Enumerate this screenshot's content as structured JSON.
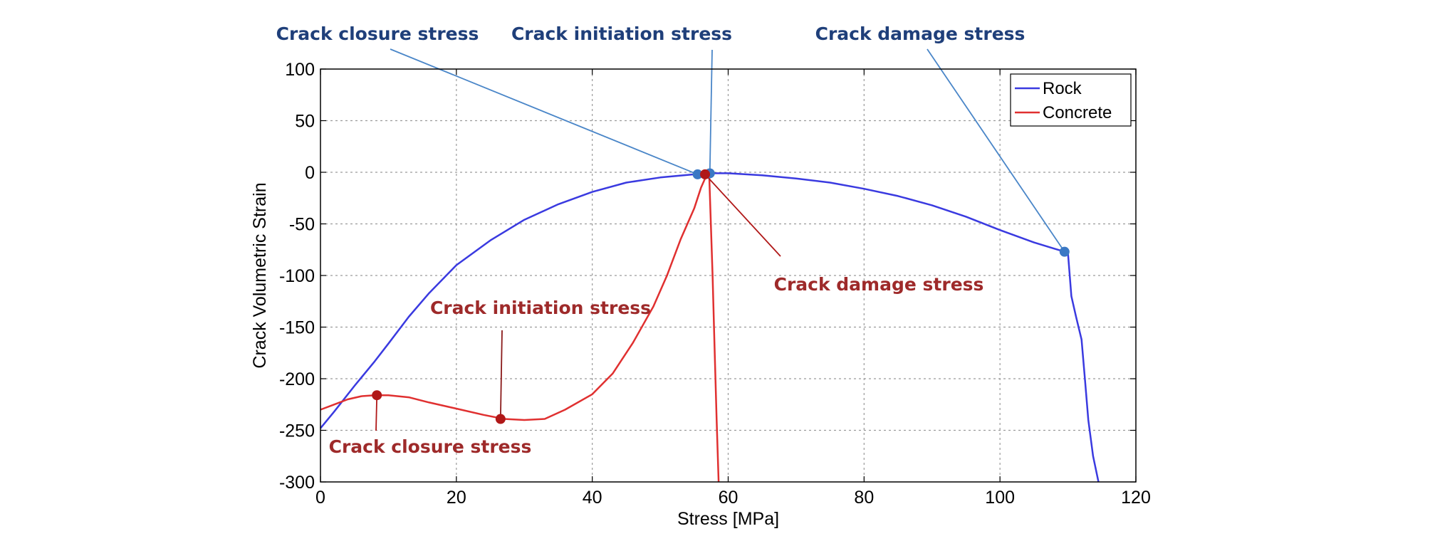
{
  "chart_data": {
    "type": "line",
    "title": "",
    "xlabel": "Stress [MPa]",
    "ylabel": "Crack Volumetric Strain",
    "xlim": [
      0,
      120
    ],
    "ylim": [
      -300,
      100
    ],
    "xticks": [
      0,
      20,
      40,
      60,
      80,
      100,
      120
    ],
    "yticks": [
      100,
      50,
      0,
      -50,
      -100,
      -150,
      -200,
      -250,
      -300
    ],
    "grid": true,
    "legend_position": "top-right",
    "series": [
      {
        "name": "Rock",
        "color": "#3a3ae0",
        "points": [
          [
            0,
            -248
          ],
          [
            2,
            -232
          ],
          [
            5,
            -207
          ],
          [
            8,
            -183
          ],
          [
            10,
            -166
          ],
          [
            13,
            -140
          ],
          [
            16,
            -117
          ],
          [
            20,
            -90
          ],
          [
            25,
            -66
          ],
          [
            30,
            -46
          ],
          [
            35,
            -31
          ],
          [
            40,
            -19
          ],
          [
            45,
            -10
          ],
          [
            50,
            -5
          ],
          [
            55,
            -2
          ],
          [
            58,
            -1
          ],
          [
            60,
            -1
          ],
          [
            65,
            -3
          ],
          [
            70,
            -6
          ],
          [
            75,
            -10
          ],
          [
            80,
            -16
          ],
          [
            85,
            -23
          ],
          [
            90,
            -32
          ],
          [
            95,
            -43
          ],
          [
            100,
            -56
          ],
          [
            105,
            -68
          ],
          [
            108,
            -74
          ],
          [
            109.5,
            -77
          ],
          [
            110,
            -78
          ],
          [
            110.5,
            -120
          ],
          [
            111.2,
            -140
          ],
          [
            112,
            -162
          ],
          [
            112.5,
            -200
          ],
          [
            113,
            -240
          ],
          [
            113.7,
            -275
          ],
          [
            114.5,
            -300
          ]
        ]
      },
      {
        "name": "Concrete",
        "color": "#e03030",
        "points": [
          [
            0,
            -230
          ],
          [
            2,
            -225
          ],
          [
            4,
            -220
          ],
          [
            6,
            -217
          ],
          [
            8,
            -216
          ],
          [
            10,
            -216
          ],
          [
            13,
            -218
          ],
          [
            16,
            -223
          ],
          [
            20,
            -229
          ],
          [
            24,
            -235
          ],
          [
            27,
            -239
          ],
          [
            30,
            -240
          ],
          [
            33,
            -239
          ],
          [
            36,
            -230
          ],
          [
            40,
            -215
          ],
          [
            43,
            -195
          ],
          [
            46,
            -165
          ],
          [
            49,
            -130
          ],
          [
            51,
            -100
          ],
          [
            53,
            -65
          ],
          [
            55,
            -35
          ],
          [
            56,
            -15
          ],
          [
            56.8,
            -3
          ],
          [
            57.2,
            -1
          ],
          [
            57.4,
            -40
          ],
          [
            57.7,
            -100
          ],
          [
            58,
            -170
          ],
          [
            58.3,
            -240
          ],
          [
            58.6,
            -300
          ]
        ]
      }
    ],
    "markers": [
      {
        "series": "Rock",
        "x": 55.5,
        "y": -2,
        "color": "#3a78c4"
      },
      {
        "series": "Rock",
        "x": 57.3,
        "y": -1,
        "color": "#3a78c4"
      },
      {
        "series": "Rock",
        "x": 109.5,
        "y": -77,
        "color": "#3a78c4"
      },
      {
        "series": "Concrete",
        "x": 56.6,
        "y": -2,
        "color": "#b01818"
      },
      {
        "series": "Concrete",
        "x": 8.3,
        "y": -216,
        "color": "#b01818"
      },
      {
        "series": "Concrete",
        "x": 26.5,
        "y": -239,
        "color": "#b01818"
      }
    ],
    "annotations": [
      {
        "text": "Crack closure stress",
        "color": "#1f3f7a",
        "target": [
          55.5,
          -2
        ]
      },
      {
        "text": "Crack initiation stress",
        "color": "#1f3f7a",
        "target": [
          57.3,
          -1
        ]
      },
      {
        "text": "Crack damage stress",
        "color": "#1f3f7a",
        "target": [
          109.5,
          -77
        ]
      },
      {
        "text": "Crack damage stress",
        "color": "#9e2a2a",
        "target": [
          56.6,
          -2
        ]
      },
      {
        "text": "Crack initiation stress",
        "color": "#9e2a2a",
        "target": [
          26.5,
          -239
        ]
      },
      {
        "text": "Crack closure stress",
        "color": "#9e2a2a",
        "target": [
          8.3,
          -216
        ]
      }
    ]
  }
}
